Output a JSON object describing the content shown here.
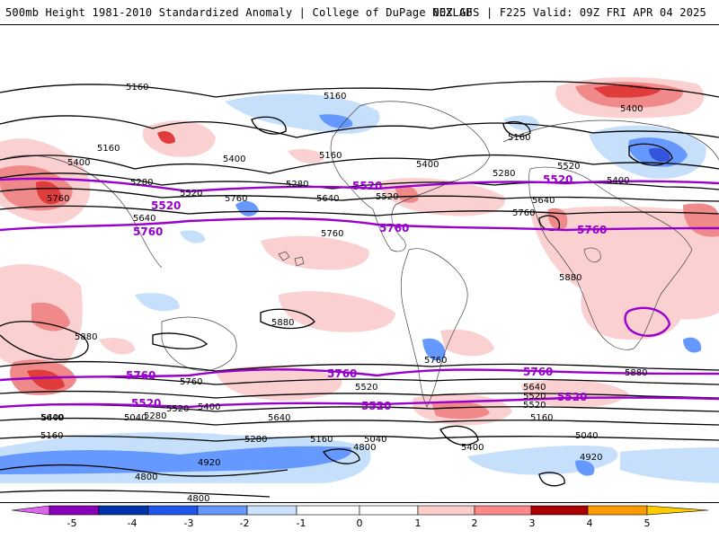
{
  "header": {
    "title_left": "500mb Height 1981-2010 Standardized Anomaly | College of DuPage NEXLAB",
    "title_right": "00Z GFS | F225 Valid: 09Z FRI APR 04 2025"
  },
  "map": {
    "contour_labels_black": [
      "5160",
      "5160",
      "5160",
      "5160",
      "5160",
      "5400",
      "5400",
      "5400",
      "5400",
      "5400",
      "5280",
      "5280",
      "5280",
      "5520",
      "5520",
      "5520",
      "5640",
      "5640",
      "5640",
      "5760",
      "5760",
      "5760",
      "5760",
      "5880",
      "5880",
      "5880",
      "5880",
      "5760",
      "5760",
      "5520",
      "5640",
      "5520",
      "5040",
      "5040",
      "5040",
      "5160",
      "5160",
      "4920",
      "4920",
      "4800",
      "4800",
      "4800",
      "5400",
      "5400",
      "5280",
      "5640",
      "5520",
      "5160",
      "5400",
      "5280",
      "5520",
      "5640"
    ],
    "contour_labels_purple": [
      "5520",
      "5760",
      "5520",
      "5760",
      "5520",
      "5760",
      "5760",
      "5760",
      "5760",
      "5520",
      "5520",
      "5520"
    ],
    "colors": {
      "purple_contour": "#9900cc",
      "neg_light": "#c6e0fb",
      "neg_med": "#6699ff",
      "neg_strong": "#3355dd",
      "pos_light": "#fbd0d0",
      "pos_med": "#f08a8a",
      "pos_strong": "#e03c3c",
      "pos_extreme": "#b00000"
    }
  },
  "legend": {
    "ticks": [
      "-5",
      "-4",
      "-3",
      "-2",
      "-1",
      "0",
      "1",
      "2",
      "3",
      "4",
      "5"
    ],
    "colors": [
      "#dd66ee",
      "#8800bb",
      "#0033aa",
      "#2255ee",
      "#6699ff",
      "#cce0ff",
      "#ffffff",
      "#ffcccc",
      "#ff8888",
      "#dd3333",
      "#aa0000",
      "#ff9900",
      "#ffcc00"
    ]
  }
}
